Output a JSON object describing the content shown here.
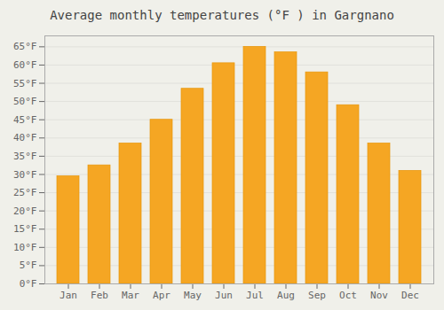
{
  "chart_data": {
    "type": "bar",
    "title": "Average monthly temperatures (°F ) in Gargnano",
    "categories": [
      "Jan",
      "Feb",
      "Mar",
      "Apr",
      "May",
      "Jun",
      "Jul",
      "Aug",
      "Sep",
      "Oct",
      "Nov",
      "Dec"
    ],
    "values": [
      29.5,
      32.5,
      38.5,
      45.0,
      53.5,
      60.5,
      65.0,
      63.5,
      58.0,
      49.0,
      38.5,
      31.0
    ],
    "color": "#F5A623",
    "ylim": [
      0,
      68
    ],
    "yticks": [
      {
        "value": 0,
        "label": "0°F"
      },
      {
        "value": 5,
        "label": "5°F"
      },
      {
        "value": 10,
        "label": "10°F"
      },
      {
        "value": 15,
        "label": "15°F"
      },
      {
        "value": 20,
        "label": "20°F"
      },
      {
        "value": 25,
        "label": "25°F"
      },
      {
        "value": 30,
        "label": "30°F"
      },
      {
        "value": 35,
        "label": "35°F"
      },
      {
        "value": 40,
        "label": "40°F"
      },
      {
        "value": 45,
        "label": "45°F"
      },
      {
        "value": 50,
        "label": "50°F"
      },
      {
        "value": 55,
        "label": "55°F"
      },
      {
        "value": 60,
        "label": "60°F"
      },
      {
        "value": 65,
        "label": "65°F"
      }
    ],
    "grid": true
  }
}
